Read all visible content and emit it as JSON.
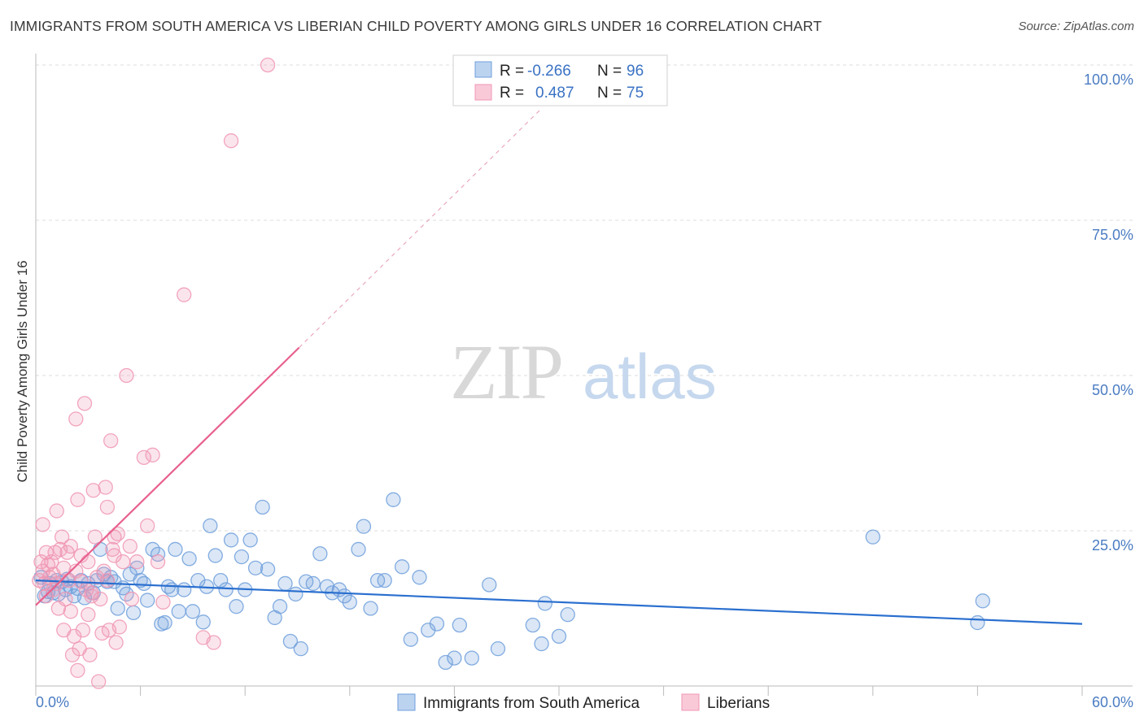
{
  "title": "IMMIGRANTS FROM SOUTH AMERICA VS LIBERIAN CHILD POVERTY AMONG GIRLS UNDER 16 CORRELATION CHART",
  "source": "Source: ZipAtlas.com",
  "watermark": {
    "zip": "ZIP",
    "atlas": "atlas"
  },
  "colors": {
    "blue": "#6f9fdc",
    "blue_line": "#2a6fcf",
    "pink": "#f097b3",
    "pink_line": "#e8618e",
    "grid": "#dcdcdc"
  },
  "legend": {
    "rows": [
      {
        "r_label": "R =",
        "r_value": "-0.266",
        "n_label": "N =",
        "n_value": "96"
      },
      {
        "r_label": "R =",
        "r_value": "0.487",
        "n_label": "N =",
        "n_value": "75"
      }
    ]
  },
  "chart_data": {
    "type": "scatter",
    "ylabel": "Child Poverty Among Girls Under 16",
    "xlim": [
      0,
      60
    ],
    "ylim": [
      0,
      100
    ],
    "x_ticks": [
      "0.0%",
      "60.0%"
    ],
    "y_ticks": [
      "25.0%",
      "50.0%",
      "75.0%",
      "100.0%"
    ],
    "y_tick_values": [
      25,
      50,
      75,
      100
    ],
    "grid": true,
    "series": [
      {
        "name": "Immigrants from South America",
        "r": -0.266,
        "n": 96,
        "trend": {
          "x": [
            0,
            60
          ],
          "y": [
            17.0,
            10.0
          ],
          "dashed_from": null
        },
        "points": [
          [
            0.3,
            17.5
          ],
          [
            0.5,
            14.5
          ],
          [
            0.7,
            15.2
          ],
          [
            0.8,
            16.5
          ],
          [
            1.0,
            15.0
          ],
          [
            1.2,
            17.0
          ],
          [
            1.3,
            14.8
          ],
          [
            1.5,
            16.8
          ],
          [
            1.7,
            15.5
          ],
          [
            1.8,
            17.2
          ],
          [
            2.0,
            16.0
          ],
          [
            2.2,
            14.5
          ],
          [
            2.4,
            15.7
          ],
          [
            2.6,
            17.0
          ],
          [
            2.8,
            14.2
          ],
          [
            3.0,
            16.5
          ],
          [
            3.3,
            15.0
          ],
          [
            3.5,
            17.0
          ],
          [
            3.7,
            22.0
          ],
          [
            3.9,
            18.0
          ],
          [
            4.1,
            16.8
          ],
          [
            4.3,
            17.5
          ],
          [
            4.5,
            16.8
          ],
          [
            4.7,
            12.5
          ],
          [
            5.0,
            15.8
          ],
          [
            5.2,
            14.8
          ],
          [
            5.4,
            18.0
          ],
          [
            5.6,
            11.8
          ],
          [
            5.8,
            19.0
          ],
          [
            6.0,
            17.0
          ],
          [
            6.2,
            16.5
          ],
          [
            6.4,
            13.8
          ],
          [
            6.7,
            22.0
          ],
          [
            7.0,
            21.2
          ],
          [
            7.2,
            10.0
          ],
          [
            7.4,
            10.2
          ],
          [
            7.6,
            16.0
          ],
          [
            7.8,
            15.5
          ],
          [
            8.0,
            22.0
          ],
          [
            8.2,
            12.0
          ],
          [
            8.5,
            15.5
          ],
          [
            8.8,
            20.5
          ],
          [
            9.0,
            12.0
          ],
          [
            9.3,
            17.0
          ],
          [
            9.6,
            10.3
          ],
          [
            9.8,
            16.0
          ],
          [
            10.0,
            25.8
          ],
          [
            10.3,
            21.0
          ],
          [
            10.6,
            17.0
          ],
          [
            10.9,
            15.5
          ],
          [
            11.2,
            23.5
          ],
          [
            11.5,
            12.8
          ],
          [
            11.8,
            20.8
          ],
          [
            12.0,
            15.5
          ],
          [
            12.3,
            23.5
          ],
          [
            12.6,
            19.0
          ],
          [
            13.0,
            28.8
          ],
          [
            13.3,
            18.8
          ],
          [
            13.7,
            11.0
          ],
          [
            14.0,
            12.8
          ],
          [
            14.3,
            16.5
          ],
          [
            14.6,
            7.2
          ],
          [
            14.9,
            14.8
          ],
          [
            15.2,
            6.0
          ],
          [
            15.5,
            16.8
          ],
          [
            15.9,
            16.5
          ],
          [
            16.3,
            21.3
          ],
          [
            16.7,
            16.0
          ],
          [
            17.0,
            15.0
          ],
          [
            17.4,
            15.5
          ],
          [
            17.7,
            14.5
          ],
          [
            18.0,
            13.5
          ],
          [
            18.5,
            22.0
          ],
          [
            18.8,
            25.7
          ],
          [
            19.2,
            12.5
          ],
          [
            19.6,
            17.0
          ],
          [
            20.0,
            17.0
          ],
          [
            20.5,
            30.0
          ],
          [
            21.0,
            19.2
          ],
          [
            21.5,
            7.5
          ],
          [
            22.0,
            17.5
          ],
          [
            22.5,
            9.0
          ],
          [
            23.0,
            10.0
          ],
          [
            23.5,
            3.8
          ],
          [
            24.0,
            4.5
          ],
          [
            24.3,
            9.8
          ],
          [
            25.0,
            4.5
          ],
          [
            26.0,
            16.3
          ],
          [
            26.5,
            6.0
          ],
          [
            28.5,
            9.8
          ],
          [
            29.0,
            6.8
          ],
          [
            29.2,
            13.3
          ],
          [
            30.0,
            8.0
          ],
          [
            30.5,
            11.5
          ],
          [
            48.0,
            24.0
          ],
          [
            54.0,
            10.2
          ],
          [
            54.3,
            13.7
          ]
        ]
      },
      {
        "name": "Liberians",
        "r": 0.487,
        "n": 75,
        "trend": {
          "x": [
            0,
            15.1
          ],
          "y": [
            13.0,
            54.5
          ],
          "dashed_to": {
            "x": 29.0,
            "y": 93.0
          }
        },
        "points": [
          [
            0.2,
            17.0
          ],
          [
            0.3,
            20.0
          ],
          [
            0.4,
            18.5
          ],
          [
            0.5,
            16.5
          ],
          [
            0.6,
            21.5
          ],
          [
            0.7,
            19.5
          ],
          [
            0.8,
            17.5
          ],
          [
            0.9,
            20.0
          ],
          [
            1.0,
            18.0
          ],
          [
            1.1,
            21.5
          ],
          [
            1.2,
            16.5
          ],
          [
            1.3,
            12.5
          ],
          [
            1.4,
            22.0
          ],
          [
            1.5,
            24.0
          ],
          [
            1.6,
            9.0
          ],
          [
            1.7,
            14.0
          ],
          [
            1.8,
            21.5
          ],
          [
            1.9,
            17.0
          ],
          [
            2.0,
            22.5
          ],
          [
            2.1,
            5.0
          ],
          [
            2.2,
            8.0
          ],
          [
            2.3,
            18.5
          ],
          [
            2.4,
            2.5
          ],
          [
            2.5,
            6.0
          ],
          [
            2.6,
            21.0
          ],
          [
            2.7,
            9.0
          ],
          [
            2.8,
            45.5
          ],
          [
            2.9,
            15.5
          ],
          [
            3.0,
            20.0
          ],
          [
            3.1,
            5.0
          ],
          [
            3.2,
            15.0
          ],
          [
            3.3,
            31.5
          ],
          [
            3.4,
            24.0
          ],
          [
            3.5,
            17.5
          ],
          [
            3.6,
            0.7
          ],
          [
            3.7,
            14.0
          ],
          [
            3.8,
            8.5
          ],
          [
            3.9,
            18.5
          ],
          [
            4.0,
            32.0
          ],
          [
            4.1,
            28.8
          ],
          [
            4.2,
            9.0
          ],
          [
            4.3,
            39.5
          ],
          [
            4.4,
            22.0
          ],
          [
            4.5,
            24.0
          ],
          [
            4.6,
            7.0
          ],
          [
            4.7,
            24.5
          ],
          [
            4.8,
            9.5
          ],
          [
            5.0,
            20.0
          ],
          [
            5.2,
            50.0
          ],
          [
            5.4,
            22.5
          ],
          [
            5.5,
            14.0
          ],
          [
            6.2,
            36.8
          ],
          [
            6.4,
            25.8
          ],
          [
            6.7,
            37.2
          ],
          [
            7.0,
            20.0
          ],
          [
            7.3,
            13.5
          ],
          [
            8.5,
            63.0
          ],
          [
            9.6,
            7.8
          ],
          [
            10.2,
            7.0
          ],
          [
            11.2,
            87.8
          ],
          [
            13.3,
            100.0
          ],
          [
            0.4,
            26.0
          ],
          [
            1.2,
            28.2
          ],
          [
            2.3,
            43.0
          ],
          [
            2.4,
            30.0
          ],
          [
            0.6,
            14.5
          ],
          [
            1.0,
            15.5
          ],
          [
            1.6,
            19.0
          ],
          [
            2.0,
            12.0
          ],
          [
            2.6,
            16.8
          ],
          [
            3.0,
            11.5
          ],
          [
            3.2,
            14.5
          ],
          [
            4.1,
            17.0
          ],
          [
            4.5,
            21.0
          ],
          [
            5.8,
            20.0
          ]
        ]
      }
    ]
  }
}
